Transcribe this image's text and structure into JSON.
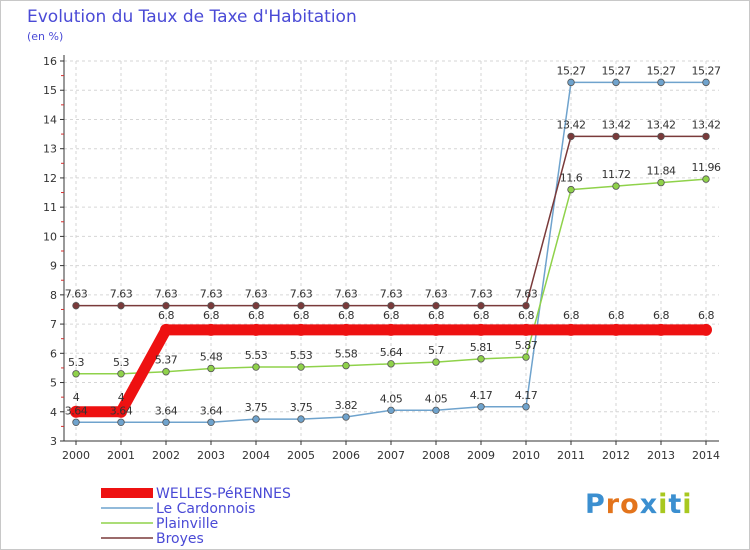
{
  "colors": {
    "WELLES-PéRENNES": "#ee1111",
    "Le Cardonnois": "#6fa3cd",
    "Plainville": "#8fd24a",
    "Broyes": "#7a3a3a",
    "title": "#4a4ad6",
    "axis": "#333333"
  },
  "logo": {
    "text": "Proxiti",
    "letter_colors": [
      "#3b8fd0",
      "#e3741c",
      "#e3741c",
      "#3b8fd0",
      "#a8c820",
      "#3b8fd0",
      "#a8c820"
    ]
  },
  "chart_data": {
    "type": "line",
    "title": "Evolution du Taux de Taxe d'Habitation",
    "unit_label": "(en %)",
    "xlabel": "",
    "ylabel": "",
    "categories": [
      "2000",
      "2001",
      "2002",
      "2003",
      "2004",
      "2005",
      "2006",
      "2007",
      "2008",
      "2009",
      "2010",
      "2011",
      "2012",
      "2013",
      "2014"
    ],
    "ylim": [
      3,
      16
    ],
    "yticks": [
      3,
      4,
      5,
      6,
      7,
      8,
      9,
      10,
      11,
      12,
      13,
      14,
      15,
      16
    ],
    "legend_position": "bottom-left",
    "series": [
      {
        "name": "WELLES-PéRENNES",
        "values": [
          4,
          4,
          6.8,
          6.8,
          6.8,
          6.8,
          6.8,
          6.8,
          6.8,
          6.8,
          6.8,
          6.8,
          6.8,
          6.8,
          6.8
        ],
        "labels": [
          "4",
          "4",
          "6.8",
          "6.8",
          "6.8",
          "6.8",
          "6.8",
          "6.8",
          "6.8",
          "6.8",
          "6.8",
          "6.8",
          "6.8",
          "6.8",
          "6.8"
        ]
      },
      {
        "name": "Le Cardonnois",
        "values": [
          3.64,
          3.64,
          3.64,
          3.64,
          3.75,
          3.75,
          3.82,
          4.05,
          4.05,
          4.17,
          4.17,
          15.27,
          15.27,
          15.27,
          15.27
        ],
        "labels": [
          "3.64",
          "3.64",
          "3.64",
          "3.64",
          "3.75",
          "3.75",
          "3.82",
          "4.05",
          "4.05",
          "4.17",
          "4.17",
          "15.27",
          "15.27",
          "15.27",
          "15.27"
        ]
      },
      {
        "name": "Plainville",
        "values": [
          5.3,
          5.3,
          5.37,
          5.48,
          5.53,
          5.53,
          5.58,
          5.64,
          5.7,
          5.81,
          5.87,
          11.6,
          11.72,
          11.84,
          11.96
        ],
        "labels": [
          "5.3",
          "5.3",
          "5.37",
          "5.48",
          "5.53",
          "5.53",
          "5.58",
          "5.64",
          "5.7",
          "5.81",
          "5.87",
          "11.6",
          "11.72",
          "11.84",
          "11.96"
        ]
      },
      {
        "name": "Broyes",
        "values": [
          7.63,
          7.63,
          7.63,
          7.63,
          7.63,
          7.63,
          7.63,
          7.63,
          7.63,
          7.63,
          7.63,
          13.42,
          13.42,
          13.42,
          13.42
        ],
        "labels": [
          "7.63",
          "7.63",
          "7.63",
          "7.63",
          "7.63",
          "7.63",
          "7.63",
          "7.63",
          "7.63",
          "7.63",
          "7.63",
          "13.42",
          "13.42",
          "13.42",
          "13.42"
        ]
      }
    ]
  }
}
